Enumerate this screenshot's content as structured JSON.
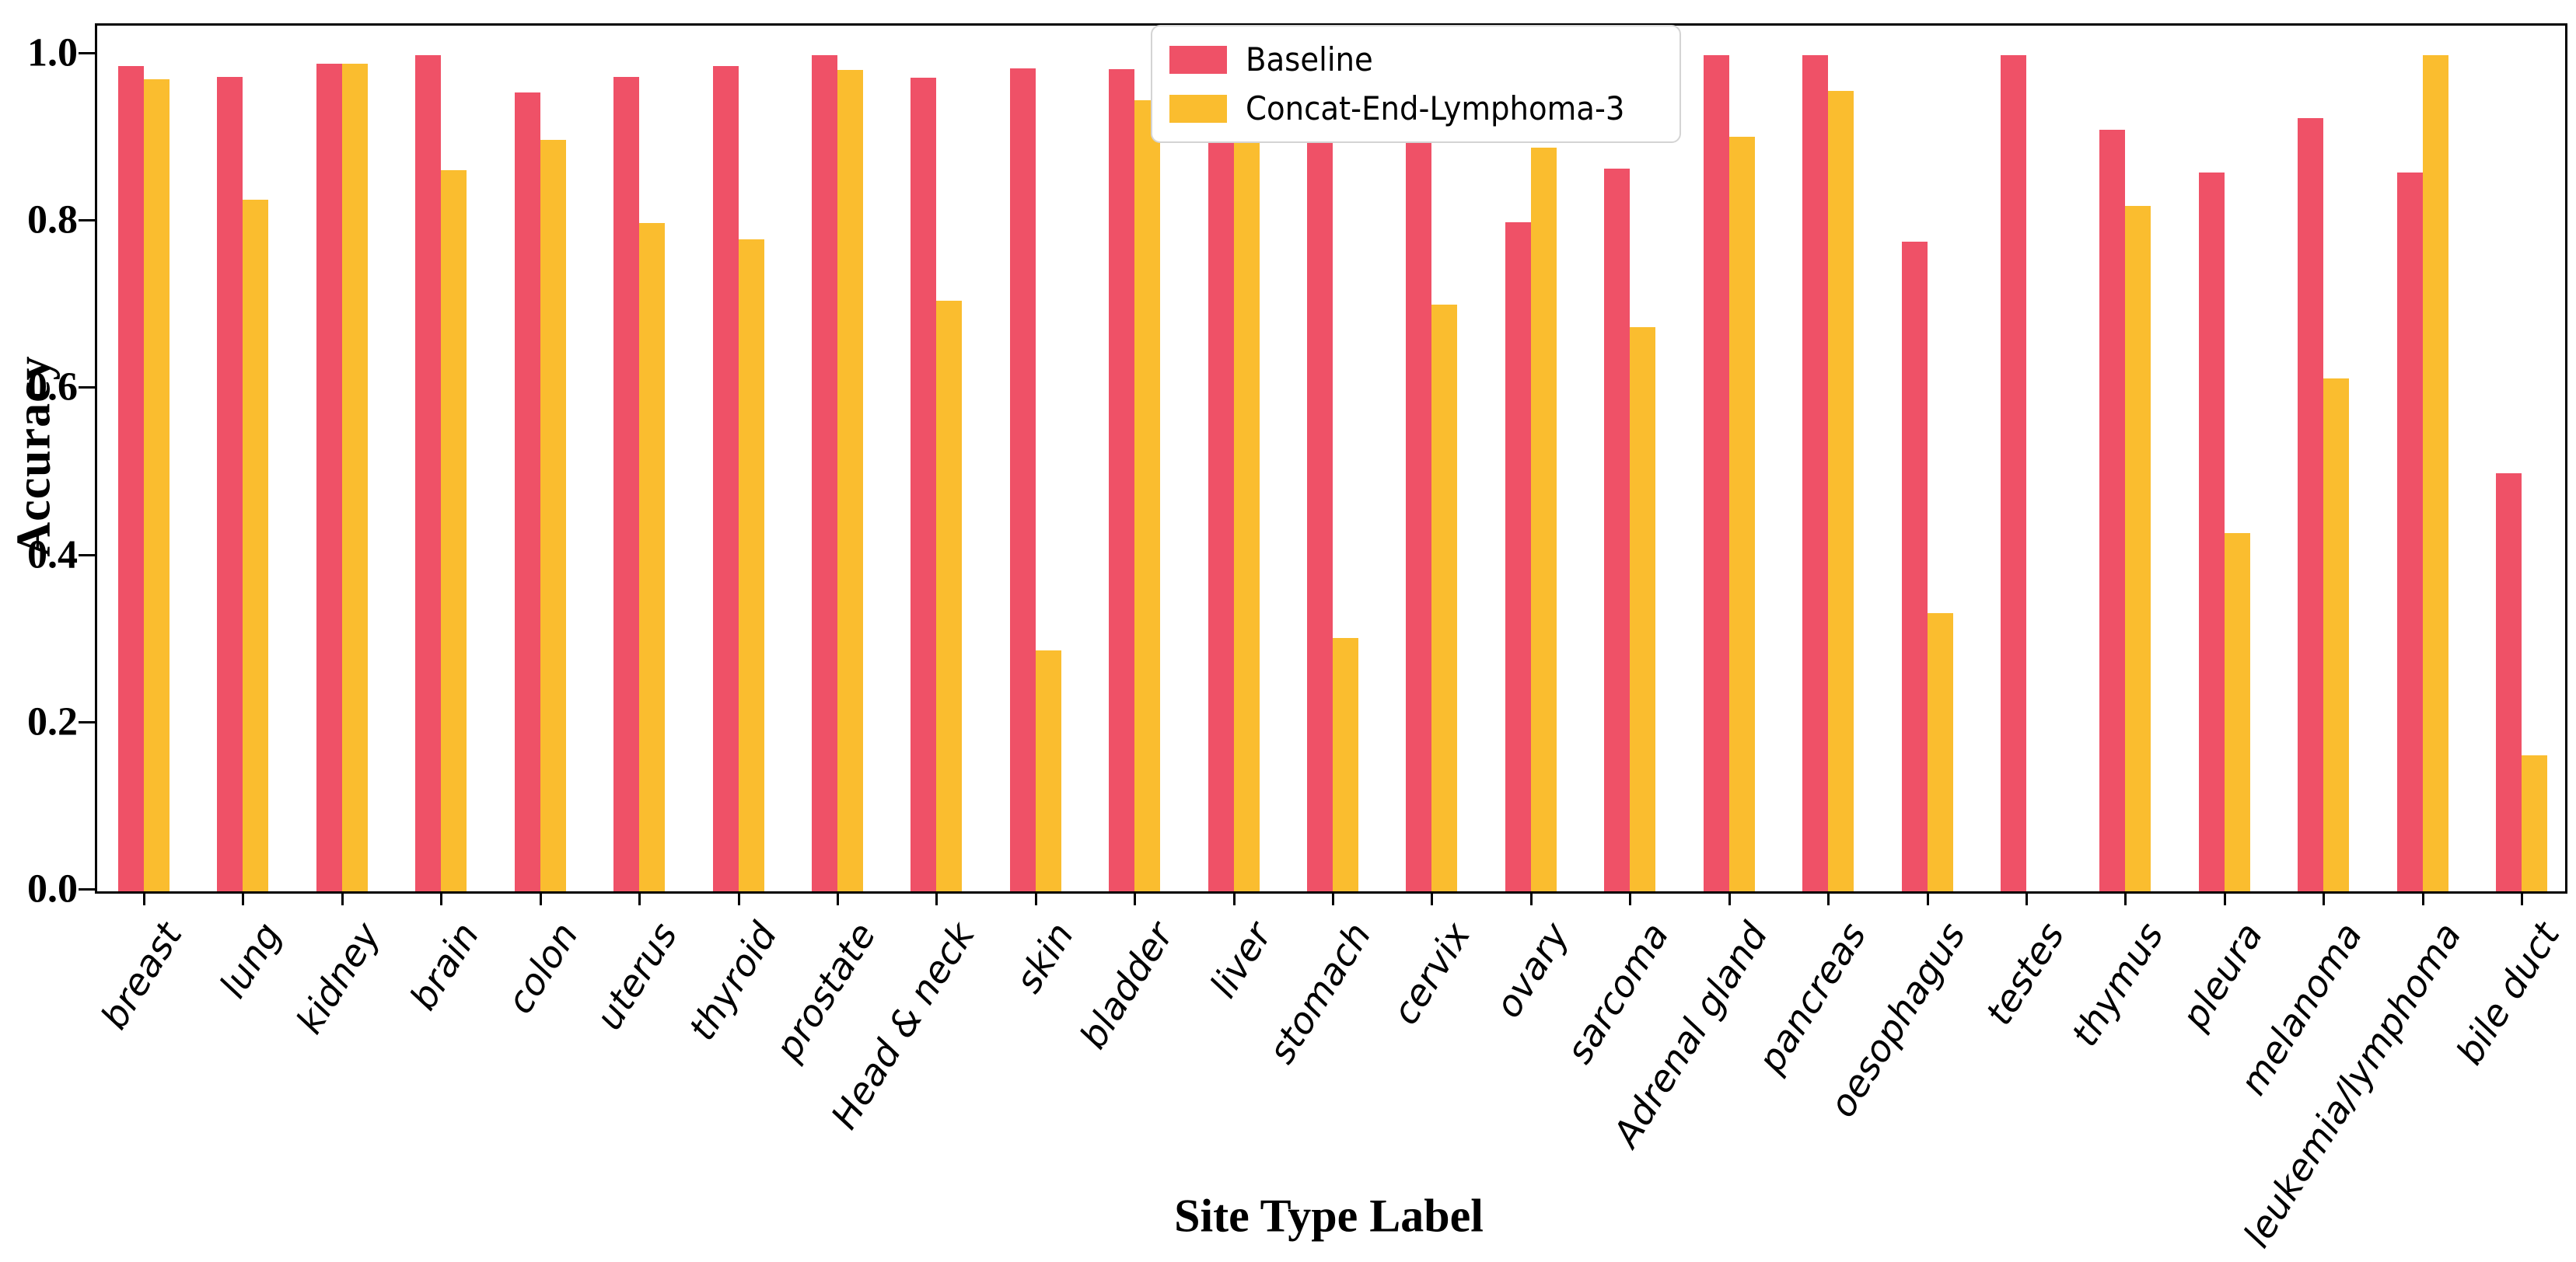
{
  "chart_data": {
    "type": "bar",
    "title": "",
    "xlabel": "Site Type Label",
    "ylabel": "Accuracy",
    "ylim": [
      0.0,
      1.04
    ],
    "yticks": [
      "0.0",
      "0.2",
      "0.4",
      "0.6",
      "0.8",
      "1.0"
    ],
    "grid": false,
    "legend_position": "upper center",
    "categories": [
      "breast",
      "lung",
      "kidney",
      "brain",
      "colon",
      "uterus",
      "thyroid",
      "prostate",
      "Head & neck",
      "skin",
      "bladder",
      "liver",
      "stomach",
      "cervix",
      "ovary",
      "sarcoma",
      "Adrenal gland",
      "pancreas",
      "oesophagus",
      "testes",
      "thymus",
      "pleura",
      "melanoma",
      "leukemia/lymphoma",
      "bile duct"
    ],
    "series": [
      {
        "name": "Baseline",
        "color": "#EF5167",
        "values": [
          0.987,
          0.974,
          0.99,
          1.0,
          0.955,
          0.974,
          0.987,
          1.0,
          0.973,
          0.984,
          0.983,
          0.91,
          0.908,
          0.908,
          0.8,
          0.864,
          1.0,
          1.0,
          0.777,
          1.0,
          0.911,
          0.86,
          0.925,
          0.86,
          0.5
        ]
      },
      {
        "name": "Concat-End-Lymphoma-3",
        "color": "#FABD2F",
        "values": [
          0.971,
          0.827,
          0.99,
          0.862,
          0.899,
          0.799,
          0.78,
          0.982,
          0.706,
          0.288,
          0.946,
          0.91,
          0.303,
          0.702,
          0.889,
          0.675,
          0.902,
          0.957,
          0.333,
          0.0,
          0.82,
          0.428,
          0.613,
          1.0,
          0.163
        ]
      }
    ]
  }
}
